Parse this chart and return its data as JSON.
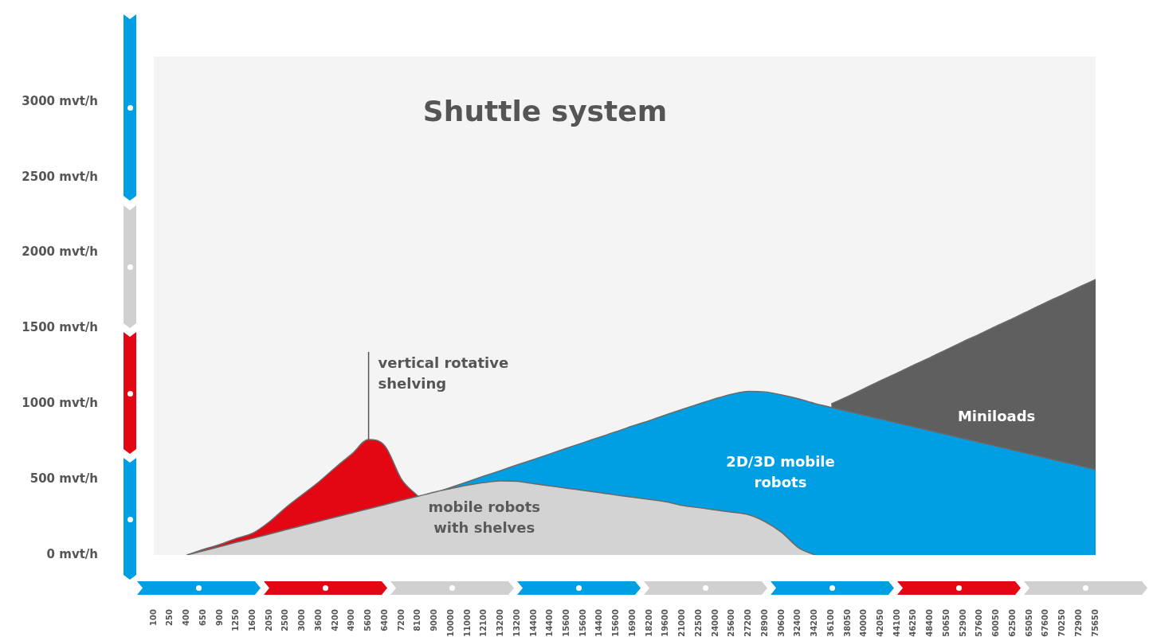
{
  "chart_data": {
    "type": "area",
    "title": "Shuttle system",
    "categories": [
      "100",
      "250",
      "400",
      "650",
      "900",
      "1250",
      "1600",
      "2050",
      "2500",
      "3000",
      "3600",
      "4200",
      "4900",
      "5600",
      "6400",
      "7200",
      "8100",
      "9000",
      "10000",
      "11000",
      "12100",
      "13200",
      "13200",
      "14400",
      "14400",
      "15600",
      "15600",
      "14400",
      "15600",
      "16900",
      "18200",
      "19600",
      "21000",
      "22500",
      "24000",
      "25600",
      "27200",
      "28900",
      "30600",
      "32400",
      "34200",
      "36100",
      "38050",
      "40000",
      "42050",
      "44100",
      "46250",
      "48400",
      "50650",
      "52900",
      "57600",
      "60050",
      "62500",
      "65050",
      "67600",
      "70250",
      "72900",
      "75650"
    ],
    "series": [
      {
        "name": "mobile robots with shelves",
        "color": "#d3d3d3",
        "values": [
          null,
          null,
          0,
          28,
          55,
          84,
          110,
          138,
          167,
          195,
          223,
          250,
          278,
          306,
          333,
          362,
          389,
          417,
          440,
          462,
          480,
          490,
          487,
          472,
          457,
          442,
          427,
          412,
          397,
          382,
          368,
          352,
          328,
          313,
          298,
          283,
          266,
          220,
          150,
          50,
          0,
          null,
          null,
          null,
          null,
          null,
          null,
          null,
          null,
          null,
          null,
          null,
          null,
          null,
          null,
          null,
          null,
          null
        ]
      },
      {
        "name": "vertical rotative shelving",
        "color": "#e30613",
        "values": [
          null,
          null,
          0,
          37,
          70,
          110,
          145,
          220,
          315,
          400,
          485,
          580,
          670,
          765,
          720,
          500,
          389,
          null,
          null,
          null,
          null,
          null,
          null,
          null,
          null,
          null,
          null,
          null,
          null,
          null,
          null,
          null,
          null,
          null,
          null,
          null,
          null,
          null,
          null,
          null,
          null,
          null,
          null,
          null,
          null,
          null,
          null,
          null,
          null,
          null,
          null,
          null,
          null,
          null,
          null,
          null,
          null,
          null
        ]
      },
      {
        "name": "2D/3D mobile robots",
        "color": "#009fe3",
        "values": [
          null,
          null,
          null,
          null,
          null,
          null,
          null,
          null,
          null,
          null,
          null,
          null,
          null,
          null,
          null,
          null,
          null,
          412,
          448,
          485,
          523,
          559,
          597,
          633,
          670,
          708,
          744,
          781,
          817,
          855,
          890,
          928,
          965,
          1000,
          1035,
          1065,
          1083,
          1080,
          1060,
          1035,
          1003,
          977,
          951,
          925,
          900,
          874,
          848,
          822,
          797,
          771,
          745,
          720,
          694,
          668,
          643,
          617,
          591,
          565
        ]
      },
      {
        "name": "Miniloads",
        "color": "#5f5f5f",
        "values": [
          null,
          null,
          null,
          null,
          null,
          null,
          null,
          null,
          null,
          null,
          null,
          null,
          null,
          null,
          null,
          null,
          null,
          null,
          null,
          null,
          null,
          null,
          null,
          null,
          null,
          null,
          null,
          null,
          null,
          null,
          null,
          null,
          null,
          null,
          null,
          null,
          null,
          null,
          null,
          null,
          null,
          1000,
          1050,
          1102,
          1155,
          1205,
          1258,
          1308,
          1361,
          1413,
          1463,
          1516,
          1566,
          1619,
          1672,
          1722,
          1774,
          1824
        ]
      }
    ],
    "ylim": [
      0,
      3300
    ],
    "yticks": [
      {
        "value": 0,
        "label": "0 mvt/h"
      },
      {
        "value": 500,
        "label": "500 mvt/h"
      },
      {
        "value": 1000,
        "label": "1000 mvt/h"
      },
      {
        "value": 1500,
        "label": "1500 mvt/h"
      },
      {
        "value": 2000,
        "label": "2000 mvt/h"
      },
      {
        "value": 2500,
        "label": "2500 mvt/h"
      },
      {
        "value": 3000,
        "label": "3000 mvt/h"
      }
    ]
  }
}
